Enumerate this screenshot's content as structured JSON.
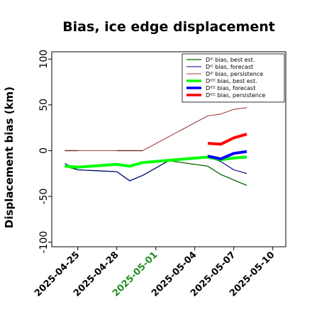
{
  "chart_data": {
    "type": "line",
    "title": "Bias, ice edge displacement",
    "xlabel": "",
    "ylabel": "Displacement bias (km)",
    "ylim": [
      -105,
      108
    ],
    "yticks": [
      -100,
      -50,
      0,
      50,
      100
    ],
    "xlim": [
      "2025-04-23",
      "2025-05-11"
    ],
    "xticks": [
      "2025-04-25",
      "2025-04-28",
      "2025-05-01",
      "2025-05-04",
      "2025-05-07",
      "2025-05-10"
    ],
    "highlighted_tick": {
      "label": "2025-05-01",
      "color": "#228B22"
    },
    "legend_position": "top-right",
    "grid": false,
    "series": [
      {
        "name": "Dᴵᴱ bias, best est.",
        "color": "#006400",
        "width": 1.3,
        "x": [
          "2025-04-24",
          "2025-04-25",
          "2025-04-28",
          "2025-04-29",
          "2025-04-30",
          "2025-05-02",
          "2025-05-05",
          "2025-05-06",
          "2025-05-07",
          "2025-05-08"
        ],
        "y": [
          -17,
          -21,
          -23,
          -33,
          -27,
          -11,
          -17,
          -26,
          -32,
          -38
        ]
      },
      {
        "name": "Dᴵᴱ bias, forecast",
        "color": "#00008B",
        "width": 1.1,
        "x": [
          "2025-04-24",
          "2025-04-25",
          "2025-04-28",
          "2025-04-29",
          "2025-04-30",
          "2025-05-02",
          "2025-05-05",
          "2025-05-06",
          "2025-05-07",
          "2025-05-08"
        ],
        "y": [
          -14,
          -21,
          -23,
          -33,
          -27,
          -11,
          -7,
          -12,
          -21,
          -25
        ]
      },
      {
        "name": "Dᴵᴱ bias, persistence",
        "color": "#8B0000",
        "width": 0.8,
        "x": [
          "2025-04-24",
          "2025-04-25",
          "2025-04-28",
          "2025-04-29",
          "2025-04-30",
          "2025-05-05",
          "2025-05-06",
          "2025-05-07",
          "2025-05-08"
        ],
        "y": [
          0,
          0,
          0,
          0,
          0,
          38,
          40,
          45,
          47
        ]
      },
      {
        "name": "Dᴵᴱᴱ bias, best est.",
        "color": "#00ff00",
        "width": 4,
        "x": [
          "2025-04-24",
          "2025-04-25",
          "2025-04-28",
          "2025-04-29",
          "2025-04-30",
          "2025-05-05",
          "2025-05-06",
          "2025-05-07",
          "2025-05-08"
        ],
        "y": [
          -17,
          -18,
          -15,
          -17,
          -13,
          -7,
          -10,
          -8,
          -7
        ]
      },
      {
        "name": "Dᴵᴱᴱ bias, forecast",
        "color": "#0000ff",
        "width": 4,
        "x": [
          "2025-05-05",
          "2025-05-06",
          "2025-05-07",
          "2025-05-08"
        ],
        "y": [
          -6,
          -9,
          -3,
          -1
        ]
      },
      {
        "name": "Dᴵᴱᴱ bias, persistence",
        "color": "#ff0000",
        "width": 4,
        "x": [
          "2025-05-05",
          "2025-05-06",
          "2025-05-07",
          "2025-05-08"
        ],
        "y": [
          8,
          7,
          14,
          18
        ]
      }
    ],
    "grey_segments": [
      {
        "color": "#808080",
        "x": [
          "2025-04-24",
          "2025-04-25"
        ],
        "y": [
          0,
          0
        ]
      },
      {
        "color": "#808080",
        "x": [
          "2025-04-28",
          "2025-04-30"
        ],
        "y": [
          0,
          0
        ]
      }
    ]
  }
}
